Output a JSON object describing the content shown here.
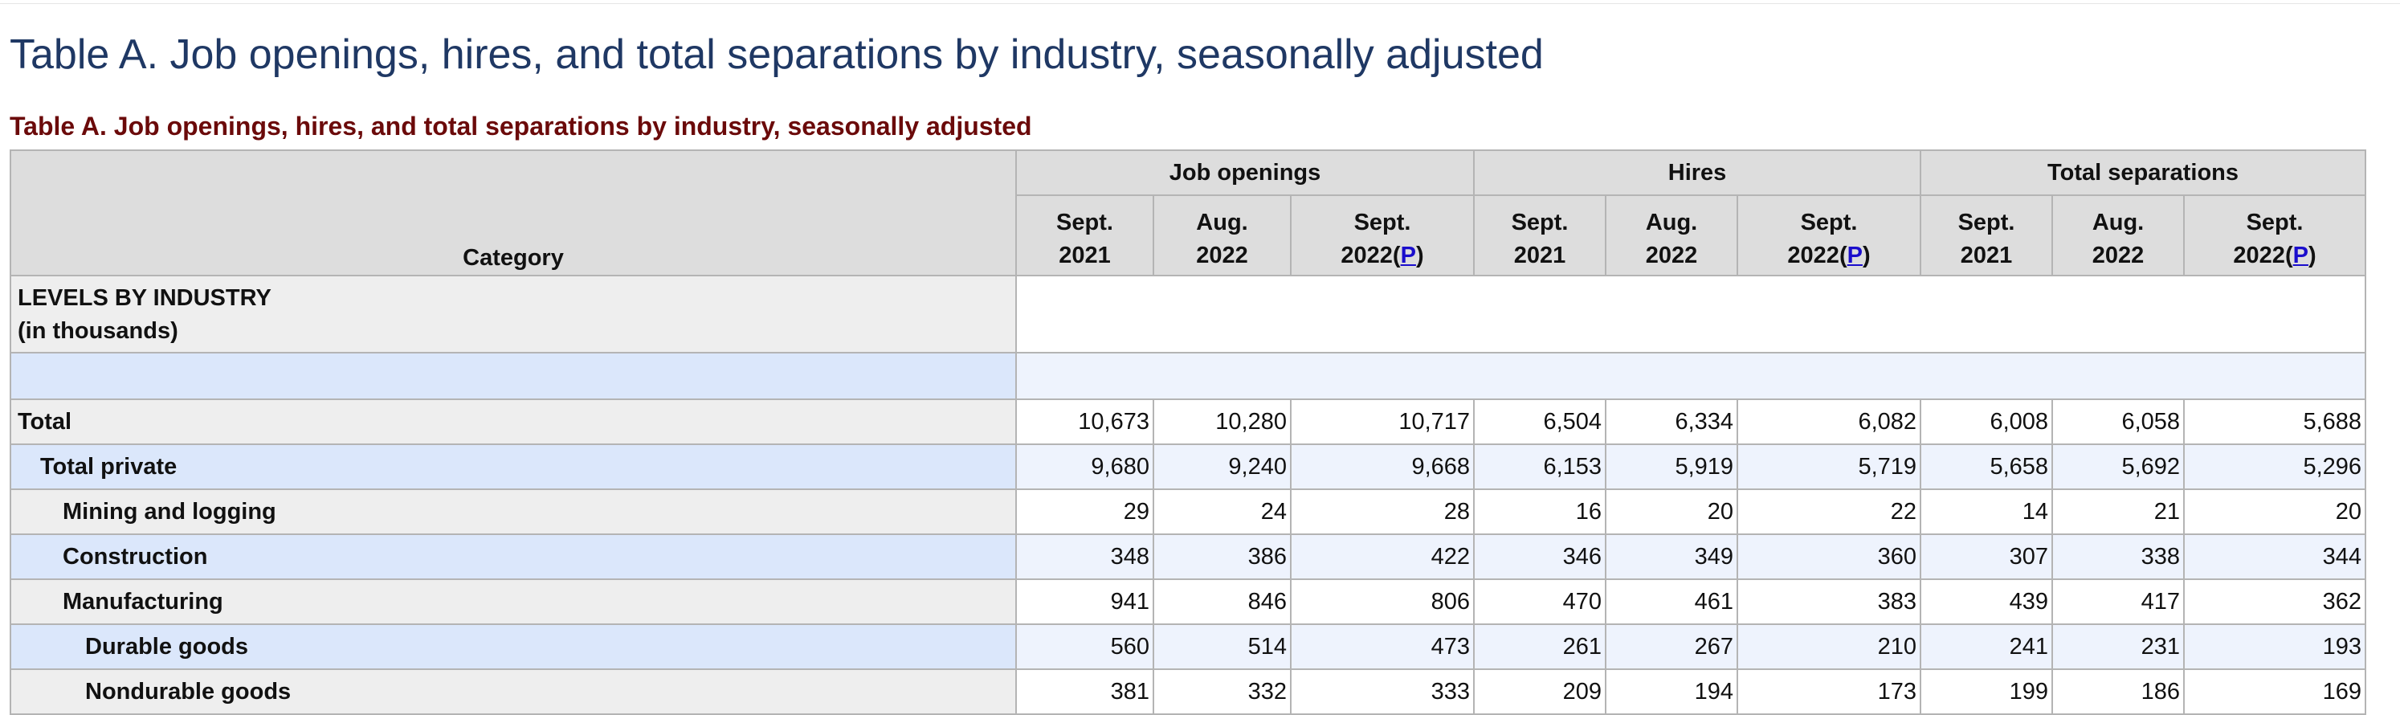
{
  "page": {
    "title": "Table A. Job openings, hires, and total separations by industry, seasonally adjusted",
    "caption": "Table A. Job openings, hires, and total separations by industry, seasonally adjusted"
  },
  "table": {
    "category_header": "Category",
    "groups": [
      {
        "label": "Job openings",
        "columns": [
          {
            "month": "Sept.",
            "year": "2021",
            "preliminary": ""
          },
          {
            "month": "Aug.",
            "year": "2022",
            "preliminary": ""
          },
          {
            "month": "Sept.",
            "year": "2022",
            "preliminary": "P"
          }
        ]
      },
      {
        "label": "Hires",
        "columns": [
          {
            "month": "Sept.",
            "year": "2021",
            "preliminary": ""
          },
          {
            "month": "Aug.",
            "year": "2022",
            "preliminary": ""
          },
          {
            "month": "Sept.",
            "year": "2022",
            "preliminary": "P"
          }
        ]
      },
      {
        "label": "Total separations",
        "columns": [
          {
            "month": "Sept.",
            "year": "2021",
            "preliminary": ""
          },
          {
            "month": "Aug.",
            "year": "2022",
            "preliminary": ""
          },
          {
            "month": "Sept.",
            "year": "2022",
            "preliminary": "P"
          }
        ]
      }
    ],
    "section_label_line1": "LEVELS BY INDUSTRY",
    "section_label_line2": "(in thousands)",
    "rows": [
      {
        "label": "Total",
        "level": 0,
        "values": [
          "10,673",
          "10,280",
          "10,717",
          "6,504",
          "6,334",
          "6,082",
          "6,008",
          "6,058",
          "5,688"
        ]
      },
      {
        "label": "Total private",
        "level": 1,
        "values": [
          "9,680",
          "9,240",
          "9,668",
          "6,153",
          "5,919",
          "5,719",
          "5,658",
          "5,692",
          "5,296"
        ]
      },
      {
        "label": "Mining and logging",
        "level": 2,
        "values": [
          "29",
          "24",
          "28",
          "16",
          "20",
          "22",
          "14",
          "21",
          "20"
        ]
      },
      {
        "label": "Construction",
        "level": 2,
        "values": [
          "348",
          "386",
          "422",
          "346",
          "349",
          "360",
          "307",
          "338",
          "344"
        ]
      },
      {
        "label": "Manufacturing",
        "level": 2,
        "values": [
          "941",
          "846",
          "806",
          "470",
          "461",
          "383",
          "439",
          "417",
          "362"
        ]
      },
      {
        "label": "Durable goods",
        "level": 3,
        "values": [
          "560",
          "514",
          "473",
          "261",
          "267",
          "210",
          "241",
          "231",
          "193"
        ]
      },
      {
        "label": "Nondurable goods",
        "level": 3,
        "values": [
          "381",
          "332",
          "333",
          "209",
          "194",
          "173",
          "199",
          "186",
          "169"
        ]
      }
    ]
  }
}
